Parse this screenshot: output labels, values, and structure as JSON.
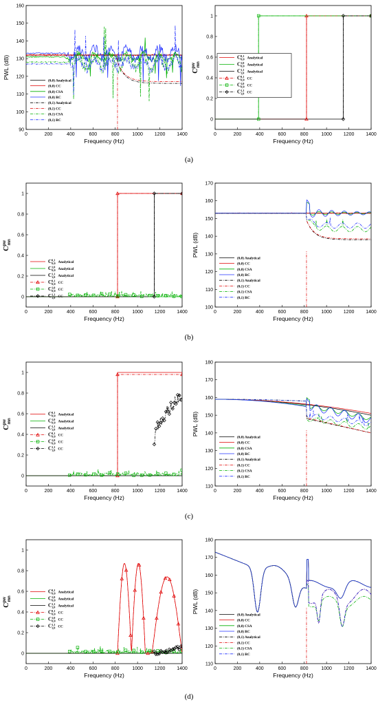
{
  "captions": [
    "(a)",
    "(b)",
    "(c)",
    "(d)"
  ],
  "chart_data": [
    {
      "id": "a-left",
      "type": "line",
      "title": "",
      "xlabel": "Frequency (Hz)",
      "ylabel": "PWL (dB)",
      "xlim": [
        0,
        1400
      ],
      "ylim": [
        90,
        160
      ],
      "xticks": [
        0,
        200,
        400,
        600,
        800,
        1000,
        1200,
        1400
      ],
      "yticks": [
        90,
        100,
        110,
        120,
        130,
        140,
        150,
        160
      ],
      "legend_position": "bottom-left",
      "cutoff_x": 820,
      "series": [
        {
          "name": "(0,0) Analytical",
          "color": "#000000",
          "dash": "solid",
          "kind": "flat",
          "y0": 132
        },
        {
          "name": "(0,0) CC",
          "color": "#e00000",
          "dash": "solid",
          "kind": "noisy",
          "y0": 132,
          "amp": 0.8
        },
        {
          "name": "(0,0) CSA",
          "color": "#00b000",
          "dash": "solid",
          "kind": "spiky",
          "y0": 131,
          "amp": 3,
          "start": 350
        },
        {
          "name": "(0,0) RC",
          "color": "#2030ff",
          "dash": "solid",
          "kind": "spiky",
          "y0": 133,
          "amp": 5,
          "start": 350
        },
        {
          "name": "(0,1) Analytical",
          "color": "#000000",
          "dash": "dashdot",
          "kind": "decay",
          "y0": 132,
          "cut": 820,
          "y1": 116
        },
        {
          "name": "(0,1) CC",
          "color": "#e00000",
          "dash": "dashdot",
          "kind": "decay",
          "y0": 132,
          "cut": 820,
          "y1": 117
        },
        {
          "name": "(0,1) CSA",
          "color": "#00b000",
          "dash": "dashdot",
          "kind": "spiky",
          "y0": 128,
          "amp": 6,
          "start": 400
        },
        {
          "name": "(0,1) RC",
          "color": "#2030ff",
          "dash": "dashdot",
          "kind": "spiky",
          "y0": 127,
          "amp": 5,
          "start": 400
        }
      ]
    },
    {
      "id": "a-right",
      "type": "line",
      "title": "",
      "xlabel": "Frequency (Hz)",
      "ylabel": "C",
      "ylabel_sup": "pw",
      "ylabel_sub": "mn",
      "xlim": [
        0,
        1400
      ],
      "ylim": [
        -0.1,
        1.1
      ],
      "xticks": [
        0,
        200,
        400,
        600,
        800,
        1000,
        1200,
        1400
      ],
      "yticks": [
        0,
        0.2,
        0.4,
        0.6,
        0.8,
        1
      ],
      "legend_position": "center-left",
      "series": [
        {
          "name": "Analytical",
          "sup": "0,1",
          "sub": "0,0",
          "color": "#e00000",
          "dash": "solid",
          "kind": "step",
          "x0": 820
        },
        {
          "name": "Analytical",
          "sup": "1,0",
          "sub": "0,0",
          "color": "#00b000",
          "dash": "solid",
          "kind": "step",
          "x0": 390
        },
        {
          "name": "Analytical",
          "sup": "1,1",
          "sub": "1,0",
          "color": "#000000",
          "dash": "solid",
          "kind": "step",
          "x0": 1150
        },
        {
          "name": "CC",
          "sup": "0,1",
          "sub": "0,0",
          "color": "#e00000",
          "dash": "dashdot",
          "marker": "triangle",
          "kind": "stepmark",
          "x0": 820
        },
        {
          "name": "CC",
          "sup": "1,0",
          "sub": "0,0",
          "color": "#00b000",
          "dash": "dashdot",
          "marker": "square",
          "kind": "stepmark",
          "x0": 390
        },
        {
          "name": "CC",
          "sup": "1,1",
          "sub": "1,0",
          "color": "#000000",
          "dash": "dashdot",
          "marker": "diamond",
          "kind": "stepmark",
          "x0": 1150
        }
      ]
    },
    {
      "id": "b-left",
      "type": "line",
      "title": "",
      "xlabel": "Frequency (Hz)",
      "ylabel": "C",
      "ylabel_sup": "pw",
      "ylabel_sub": "mn",
      "xlim": [
        0,
        1400
      ],
      "ylim": [
        -0.1,
        1.1
      ],
      "xticks": [
        0,
        200,
        400,
        600,
        800,
        1000,
        1200,
        1400
      ],
      "yticks": [
        0,
        0.2,
        0.4,
        0.6,
        0.8,
        1
      ],
      "legend_position": "bottom-left",
      "series": [
        {
          "name": "Analytical",
          "sup": "0,1",
          "sub": "0,0",
          "color": "#e00000",
          "dash": "solid",
          "kind": "step",
          "x0": 820
        },
        {
          "name": "Analytical",
          "sup": "1,0",
          "sub": "0,0",
          "color": "#00b000",
          "dash": "solid",
          "kind": "zero"
        },
        {
          "name": "Analytical",
          "sup": "1,1",
          "sub": "1,0",
          "color": "#000000",
          "dash": "solid",
          "kind": "step",
          "x0": 1150
        },
        {
          "name": "CC",
          "sup": "0,1",
          "sub": "0,0",
          "color": "#e00000",
          "dash": "dashdot",
          "marker": "triangle",
          "kind": "stepmark",
          "x0": 820
        },
        {
          "name": "CC",
          "sup": "1,0",
          "sub": "0,0",
          "color": "#00b000",
          "dash": "dashdot",
          "marker": "square",
          "kind": "noisezero",
          "x0": 390
        },
        {
          "name": "CC",
          "sup": "1,1",
          "sub": "1,0",
          "color": "#000000",
          "dash": "dashdot",
          "marker": "diamond",
          "kind": "stepmark",
          "x0": 1150
        }
      ]
    },
    {
      "id": "b-right",
      "type": "line",
      "title": "",
      "xlabel": "Frequency (Hz)",
      "ylabel": "PWL (dB)",
      "xlim": [
        0,
        1400
      ],
      "ylim": [
        100,
        170
      ],
      "xticks": [
        0,
        200,
        400,
        600,
        800,
        1000,
        1200,
        1400
      ],
      "yticks": [
        100,
        110,
        120,
        130,
        140,
        150,
        160,
        170
      ],
      "legend_position": "bottom-left",
      "cutoff_x": 820,
      "series": [
        {
          "name": "(0,0) Analytical",
          "color": "#000000",
          "dash": "solid",
          "kind": "flat",
          "y0": 153
        },
        {
          "name": "(0,0) CC",
          "color": "#e00000",
          "dash": "solid",
          "kind": "noisy",
          "y0": 153,
          "amp": 0.4
        },
        {
          "name": "(0,0) CSA",
          "color": "#00b000",
          "dash": "solid",
          "kind": "wavy",
          "y0": 153,
          "amp": 1.2,
          "start": 820
        },
        {
          "name": "(0,0) RC",
          "color": "#2030ff",
          "dash": "solid",
          "kind": "wavy",
          "y0": 153,
          "amp": 2.5,
          "start": 820
        },
        {
          "name": "(0,1) Analytical",
          "color": "#000000",
          "dash": "dashdot",
          "kind": "decay",
          "y0": 153,
          "cut": 820,
          "y1": 138
        },
        {
          "name": "(0,1) CC",
          "color": "#e00000",
          "dash": "dashdot",
          "kind": "decay",
          "y0": 153,
          "cut": 820,
          "y1": 138.5
        },
        {
          "name": "(0,1) CSA",
          "color": "#00b000",
          "dash": "dashdot",
          "kind": "decaywavy",
          "y0": 153,
          "cut": 820,
          "y1": 144
        },
        {
          "name": "(0,1) RC",
          "color": "#2030ff",
          "dash": "dashdot",
          "kind": "decaywavy",
          "y0": 153,
          "cut": 820,
          "y1": 146
        }
      ]
    },
    {
      "id": "c-left",
      "type": "line",
      "title": "",
      "xlabel": "Frequency (Hz)",
      "ylabel": "C",
      "ylabel_sup": "pw",
      "ylabel_sub": "mn",
      "xlim": [
        0,
        1400
      ],
      "ylim": [
        -0.1,
        1.1
      ],
      "xticks": [
        0,
        200,
        400,
        600,
        800,
        1000,
        1200,
        1400
      ],
      "yticks": [
        0,
        0.2,
        0.4,
        0.6,
        0.8,
        1
      ],
      "legend_position": "center-left",
      "series": [
        {
          "name": "Analytical",
          "sup": "0,1",
          "sub": "0,0",
          "color": "#e00000",
          "dash": "solid",
          "kind": "step",
          "x0": 820
        },
        {
          "name": "Analytical",
          "sup": "1,0",
          "sub": "0,0",
          "color": "#00b000",
          "dash": "solid",
          "kind": "zero"
        },
        {
          "name": "Analytical",
          "sup": "1,1",
          "sub": "1,0",
          "color": "#000000",
          "dash": "solid",
          "kind": "zero"
        },
        {
          "name": "CC",
          "sup": "0,1",
          "sub": "0,0",
          "color": "#e00000",
          "dash": "dashdot",
          "marker": "triangle",
          "kind": "stepmark",
          "x0": 820,
          "level": 0.98
        },
        {
          "name": "CC",
          "sup": "1,0",
          "sub": "0,0",
          "color": "#00b000",
          "dash": "dashdot",
          "marker": "square",
          "kind": "noisezero",
          "x0": 390
        },
        {
          "name": "CC",
          "sup": "1,1",
          "sub": "1,0",
          "color": "#000000",
          "dash": "dashdot",
          "marker": "diamond",
          "kind": "rise",
          "x0": 1150,
          "y_start": 0.3,
          "y_end": 0.78
        }
      ]
    },
    {
      "id": "c-right",
      "type": "line",
      "title": "",
      "xlabel": "Frequency (Hz)",
      "ylabel": "PWL (dB)",
      "xlim": [
        0,
        1400
      ],
      "ylim": [
        110,
        180
      ],
      "xticks": [
        0,
        200,
        400,
        600,
        800,
        1000,
        1200,
        1400
      ],
      "yticks": [
        110,
        120,
        130,
        140,
        150,
        160,
        170,
        180
      ],
      "legend_position": "bottom-left",
      "cutoff_x": 820,
      "series": [
        {
          "name": "(0,0) Analytical",
          "color": "#000000",
          "dash": "solid",
          "kind": "slope",
          "y0": 159,
          "y1": 150
        },
        {
          "name": "(0,0) CC",
          "color": "#e00000",
          "dash": "solid",
          "kind": "slope",
          "y0": 159,
          "y1": 151
        },
        {
          "name": "(0,0) CSA",
          "color": "#00b000",
          "dash": "solid",
          "kind": "slopewavy",
          "y0": 159,
          "y1": 148,
          "amp": 1.2
        },
        {
          "name": "(0,0) RC",
          "color": "#2030ff",
          "dash": "solid",
          "kind": "slopewavy",
          "y0": 159,
          "y1": 147,
          "amp": 2
        },
        {
          "name": "(0,1) Analytical",
          "color": "#000000",
          "dash": "dashdot",
          "kind": "decayslope",
          "y0": 159,
          "cut": 820,
          "y1": 148,
          "y2": 140
        },
        {
          "name": "(0,1) CC",
          "color": "#e00000",
          "dash": "dashdot",
          "kind": "decayslope",
          "y0": 159,
          "cut": 820,
          "y1": 148.5,
          "y2": 140
        },
        {
          "name": "(0,1) CSA",
          "color": "#00b000",
          "dash": "dashdot",
          "kind": "decayslopewavy",
          "y0": 159,
          "cut": 820,
          "y1": 148,
          "y2": 143
        },
        {
          "name": "(0,1) RC",
          "color": "#2030ff",
          "dash": "dashdot",
          "kind": "decayslopewavy",
          "y0": 159,
          "cut": 820,
          "y1": 150,
          "y2": 145
        }
      ]
    },
    {
      "id": "d-left",
      "type": "line",
      "title": "",
      "xlabel": "Frequency (Hz)",
      "ylabel": "C",
      "ylabel_sup": "pw",
      "ylabel_sub": "mn",
      "xlim": [
        0,
        1400
      ],
      "ylim": [
        -0.1,
        1.1
      ],
      "xticks": [
        0,
        200,
        400,
        600,
        800,
        1000,
        1200,
        1400
      ],
      "yticks": [
        0,
        0.2,
        0.4,
        0.6,
        0.8,
        1
      ],
      "legend_position": "center-left",
      "series": [
        {
          "name": "Analytical",
          "sup": "0,1",
          "sub": "0,0",
          "color": "#e00000",
          "dash": "solid",
          "kind": "humps"
        },
        {
          "name": "Analytical",
          "sup": "1,0",
          "sub": "0,0",
          "color": "#00b000",
          "dash": "solid",
          "kind": "zero"
        },
        {
          "name": "Analytical",
          "sup": "1,1",
          "sub": "1,0",
          "color": "#000000",
          "dash": "solid",
          "kind": "zero"
        },
        {
          "name": "CC",
          "sup": "0,1",
          "sub": "0,0",
          "color": "#e00000",
          "dash": "dashdot",
          "marker": "triangle",
          "kind": "humpsmark"
        },
        {
          "name": "CC",
          "sup": "1,0",
          "sub": "0,0",
          "color": "#00b000",
          "dash": "dashdot",
          "marker": "square",
          "kind": "noisezero",
          "x0": 390
        },
        {
          "name": "CC",
          "sup": "1,1",
          "sub": "1,0",
          "color": "#000000",
          "dash": "dashdot",
          "marker": "diamond",
          "kind": "smallrise",
          "x0": 1150
        }
      ]
    },
    {
      "id": "d-right",
      "type": "line",
      "title": "",
      "xlabel": "Frequency (Hz)",
      "ylabel": "PWL (dB)",
      "xlim": [
        0,
        1400
      ],
      "ylim": [
        110,
        180
      ],
      "xticks": [
        0,
        200,
        400,
        600,
        800,
        1000,
        1200,
        1400
      ],
      "yticks": [
        110,
        120,
        130,
        140,
        150,
        160,
        170,
        180
      ],
      "legend_position": "bottom-left",
      "cutoff_x": 820,
      "series": [
        {
          "name": "(0,0) Analytical",
          "color": "#000000",
          "dash": "solid",
          "kind": "dips"
        },
        {
          "name": "(0,0) CC",
          "color": "#e00000",
          "dash": "solid",
          "kind": "dips"
        },
        {
          "name": "(0,0) CSA",
          "color": "#00b000",
          "dash": "solid",
          "kind": "dips"
        },
        {
          "name": "(0,0) RC",
          "color": "#2030ff",
          "dash": "solid",
          "kind": "dips"
        },
        {
          "name": "(0,1) Analytical",
          "color": "#000000",
          "dash": "dashdot",
          "kind": "dips1"
        },
        {
          "name": "(0,1) CC",
          "color": "#e00000",
          "dash": "dashdot",
          "kind": "dips1"
        },
        {
          "name": "(0,1) CSA",
          "color": "#00b000",
          "dash": "dashdot",
          "kind": "dips1csa"
        },
        {
          "name": "(0,1) RC",
          "color": "#2030ff",
          "dash": "dashdot",
          "kind": "dips1"
        }
      ]
    }
  ]
}
